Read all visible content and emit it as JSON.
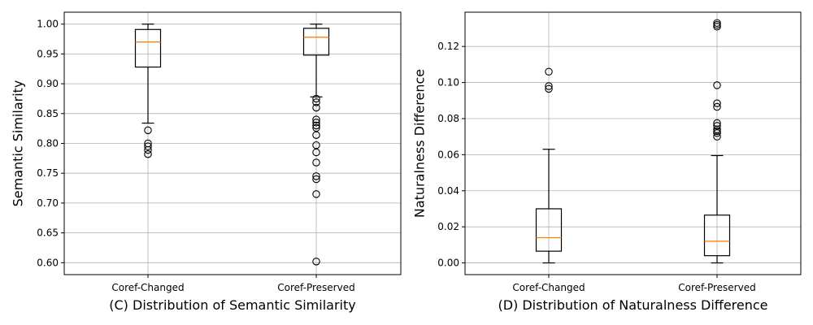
{
  "chart_data": [
    {
      "type": "box",
      "title": "",
      "xlabel": "(C) Distribution of Semantic Similarity",
      "ylabel": "Semantic Similarity",
      "categories": [
        "Coref-Changed",
        "Coref-Preserved"
      ],
      "ylim": [
        0.58,
        1.02
      ],
      "yticks": [
        0.6,
        0.65,
        0.7,
        0.75,
        0.8,
        0.85,
        0.9,
        0.95,
        1.0
      ],
      "ytick_labels": [
        "0.60",
        "0.65",
        "0.70",
        "0.75",
        "0.80",
        "0.85",
        "0.90",
        "0.95",
        "1.00"
      ],
      "grid": true,
      "boxes": [
        {
          "category": "Coref-Changed",
          "whisker_low": 0.834,
          "q1": 0.928,
          "median": 0.97,
          "q3": 0.991,
          "whisker_high": 1.0,
          "outliers": [
            0.822,
            0.8,
            0.795,
            0.789,
            0.782
          ]
        },
        {
          "category": "Coref-Preserved",
          "whisker_low": 0.878,
          "q1": 0.948,
          "median": 0.978,
          "q3": 0.993,
          "whisker_high": 1.0,
          "outliers": [
            0.875,
            0.869,
            0.86,
            0.84,
            0.835,
            0.83,
            0.826,
            0.814,
            0.797,
            0.785,
            0.768,
            0.745,
            0.74,
            0.715,
            0.602
          ]
        }
      ]
    },
    {
      "type": "box",
      "title": "",
      "xlabel": "(D) Distribution of Naturalness Difference",
      "ylabel": "Naturalness Difference",
      "categories": [
        "Coref-Changed",
        "Coref-Preserved"
      ],
      "ylim": [
        -0.0065,
        0.139
      ],
      "yticks": [
        0.0,
        0.02,
        0.04,
        0.06,
        0.08,
        0.1,
        0.12
      ],
      "ytick_labels": [
        "0.00",
        "0.02",
        "0.04",
        "0.06",
        "0.08",
        "0.10",
        "0.12"
      ],
      "grid": true,
      "boxes": [
        {
          "category": "Coref-Changed",
          "whisker_low": 0.0,
          "q1": 0.0065,
          "median": 0.014,
          "q3": 0.03,
          "whisker_high": 0.063,
          "outliers": [
            0.106,
            0.098,
            0.0965
          ]
        },
        {
          "category": "Coref-Preserved",
          "whisker_low": 0.0,
          "q1": 0.004,
          "median": 0.012,
          "q3": 0.0265,
          "whisker_high": 0.0595,
          "outliers": [
            0.133,
            0.132,
            0.131,
            0.0985,
            0.0885,
            0.0865,
            0.0775,
            0.076,
            0.074,
            0.073,
            0.072,
            0.07
          ]
        }
      ]
    }
  ]
}
